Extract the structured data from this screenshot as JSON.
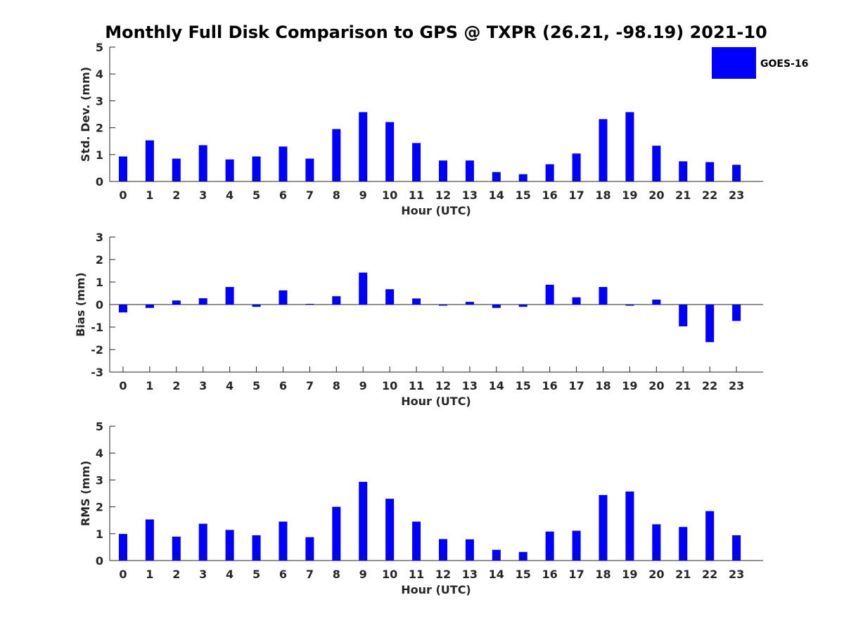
{
  "title": "Monthly Full Disk Comparison to GPS @ TXPR (26.21, -98.19) 2021-10",
  "legend": {
    "label": "GOES-16",
    "color": "#0000ff",
    "placement": "top-right"
  },
  "colors": {
    "bar": "#0000ff",
    "axis": "#262626",
    "background": "#ffffff"
  },
  "chart_data": [
    {
      "type": "bar",
      "title": "Monthly Full Disk Comparison to GPS @ TXPR (26.21, -98.19) 2021-10",
      "xlabel": "Hour (UTC)",
      "ylabel": "Std. Dev. (mm)",
      "ylim": [
        0,
        5
      ],
      "yticks": [
        0,
        1,
        2,
        3,
        4,
        5
      ],
      "categories": [
        "0",
        "1",
        "2",
        "3",
        "4",
        "5",
        "6",
        "7",
        "8",
        "9",
        "10",
        "11",
        "12",
        "13",
        "14",
        "15",
        "16",
        "17",
        "18",
        "19",
        "20",
        "21",
        "22",
        "23"
      ],
      "series": [
        {
          "name": "GOES-16",
          "values": [
            0.93,
            1.53,
            0.85,
            1.35,
            0.82,
            0.93,
            1.3,
            0.85,
            1.95,
            2.58,
            2.21,
            1.43,
            0.78,
            0.78,
            0.35,
            0.27,
            0.64,
            1.04,
            2.32,
            2.58,
            1.33,
            0.75,
            0.72,
            0.62
          ]
        }
      ],
      "grid": false
    },
    {
      "type": "bar",
      "xlabel": "Hour (UTC)",
      "ylabel": "Bias (mm)",
      "ylim": [
        -3,
        3
      ],
      "yticks": [
        -3,
        -2,
        -1,
        0,
        1,
        2,
        3
      ],
      "categories": [
        "0",
        "1",
        "2",
        "3",
        "4",
        "5",
        "6",
        "7",
        "8",
        "9",
        "10",
        "11",
        "12",
        "13",
        "14",
        "15",
        "16",
        "17",
        "18",
        "19",
        "20",
        "21",
        "22",
        "23"
      ],
      "series": [
        {
          "name": "GOES-16",
          "values": [
            -0.35,
            -0.15,
            0.18,
            0.28,
            0.78,
            -0.1,
            0.63,
            0.03,
            0.37,
            1.42,
            0.68,
            0.27,
            -0.05,
            0.12,
            -0.15,
            -0.1,
            0.88,
            0.32,
            0.78,
            -0.05,
            0.22,
            -0.97,
            -1.67,
            -0.73
          ]
        }
      ],
      "grid": false
    },
    {
      "type": "bar",
      "xlabel": "Hour (UTC)",
      "ylabel": "RMS (mm)",
      "ylim": [
        0,
        5
      ],
      "yticks": [
        0,
        1,
        2,
        3,
        4,
        5
      ],
      "categories": [
        "0",
        "1",
        "2",
        "3",
        "4",
        "5",
        "6",
        "7",
        "8",
        "9",
        "10",
        "11",
        "12",
        "13",
        "14",
        "15",
        "16",
        "17",
        "18",
        "19",
        "20",
        "21",
        "22",
        "23"
      ],
      "series": [
        {
          "name": "GOES-16",
          "values": [
            0.99,
            1.53,
            0.89,
            1.37,
            1.14,
            0.94,
            1.45,
            0.87,
            2.0,
            2.93,
            2.3,
            1.45,
            0.8,
            0.79,
            0.4,
            0.32,
            1.08,
            1.11,
            2.44,
            2.57,
            1.35,
            1.25,
            1.84,
            0.94
          ]
        }
      ],
      "grid": false
    }
  ]
}
